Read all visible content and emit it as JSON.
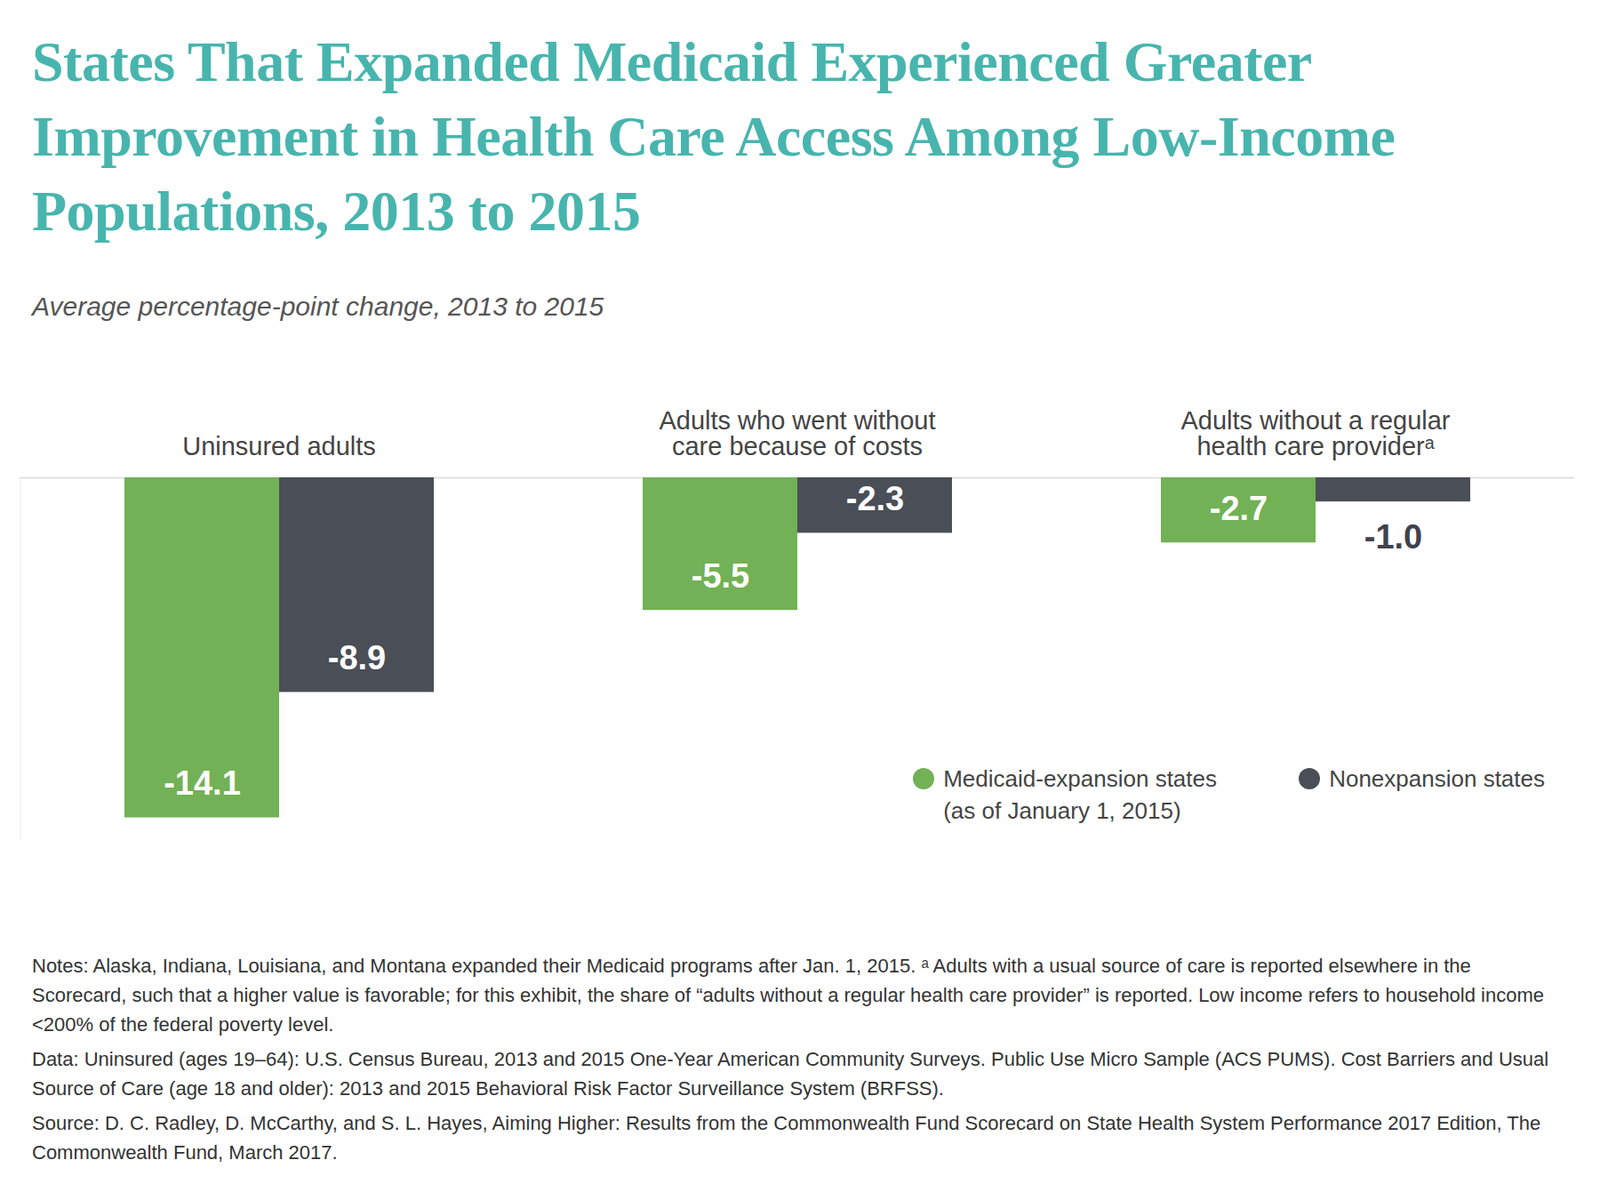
{
  "chart_data": {
    "type": "bar",
    "title": "States That Expanded Medicaid Experienced Greater Improvement in Health Care Access Among Low-Income Populations, 2013 to 2015",
    "subtitle": "Average percentage-point change, 2013 to 2015",
    "categories": [
      "Uninsured adults",
      "Adults who went without care because of costs",
      "Adults without a regular health care providerᵃ"
    ],
    "series": [
      {
        "name": "Medicaid-expansion states (as of January 1, 2015)",
        "color": "#72b155",
        "values": [
          -14.1,
          -5.5,
          -2.7
        ],
        "value_labels": [
          "-14.1",
          "-5.5",
          "-2.7"
        ]
      },
      {
        "name": "Nonexpansion states",
        "color": "#4a4e57",
        "values": [
          -8.9,
          -2.3,
          -1.0
        ],
        "value_labels": [
          "-8.9",
          "-2.3",
          "-1.0"
        ]
      }
    ],
    "ylim": [
      -15,
      0
    ],
    "yticks": [
      0
    ],
    "tick_labels": false,
    "data_labels": true,
    "legend": "bottom-right",
    "notes": [
      "Notes: Alaska, Indiana, Louisiana, and Montana expanded their Medicaid programs after Jan. 1, 2015. ᵃ Adults with a usual source of care is reported elsewhere in the Scorecard, such that a higher value is favorable; for this exhibit, the share of “adults without a regular health care provider” is reported. Low income refers to household income <200% of the federal poverty level.",
      "Data: Uninsured (ages 19–64): U.S. Census Bureau, 2013 and 2015 One-Year American Community Surveys. Public Use Micro Sample (ACS PUMS). Cost Barriers and Usual Source of Care (age 18 and older): 2013 and 2015 Behavioral Risk Factor Surveillance System (BRFSS).",
      "Source: D. C. Radley, D. McCarthy, and S. L. Hayes, Aiming Higher: Results from the Commonwealth Fund Scorecard on State Health System Performance 2017 Edition, The Commonwealth Fund, March 2017."
    ]
  }
}
